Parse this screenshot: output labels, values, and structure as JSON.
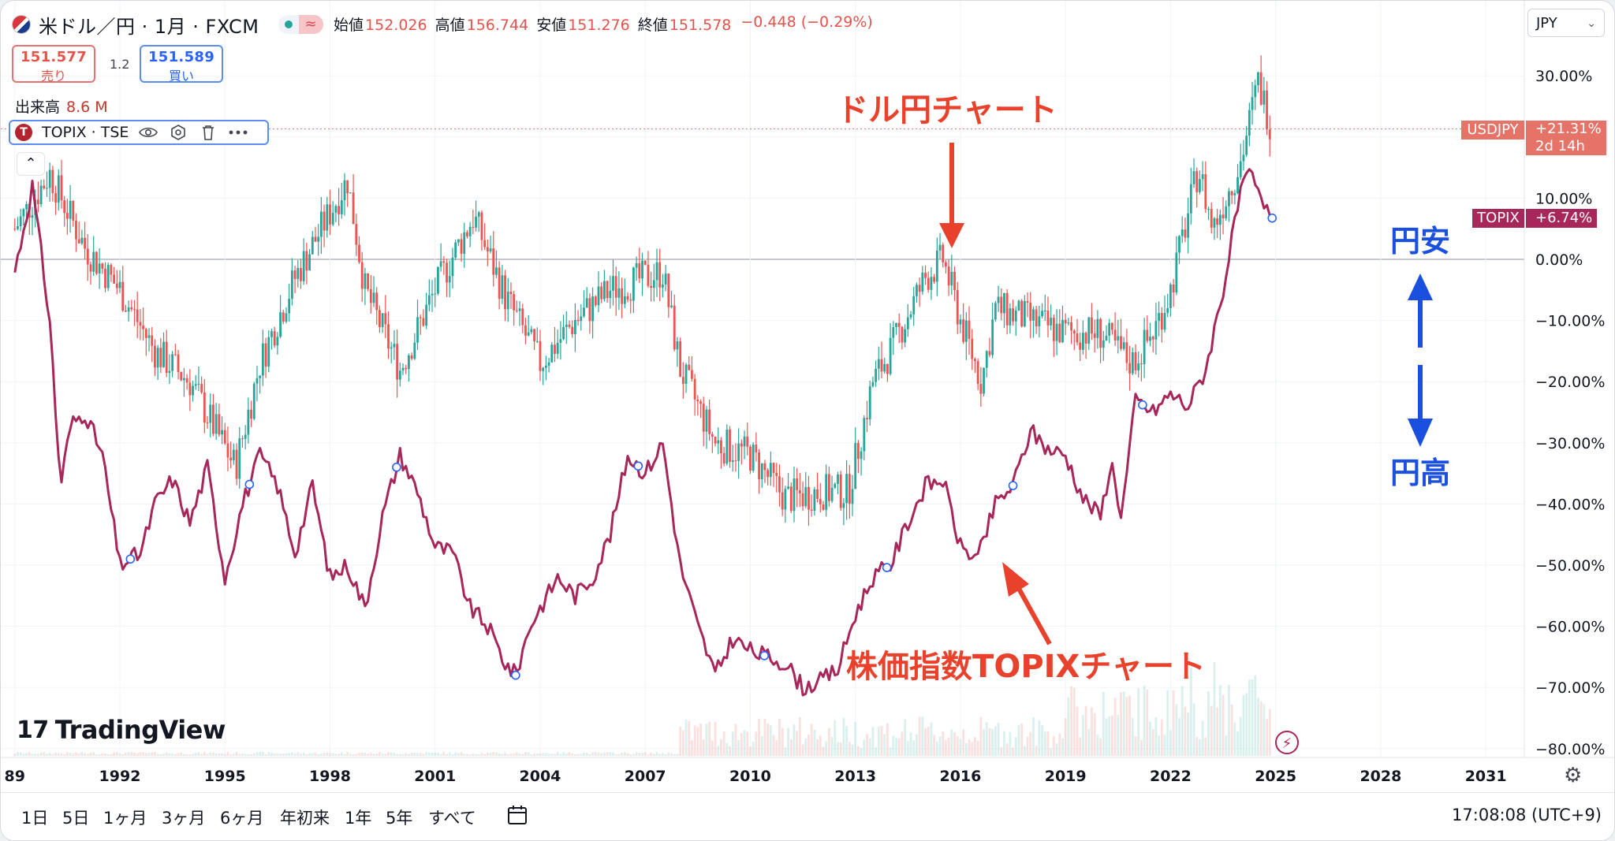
{
  "header": {
    "title": "米ドル／円 · 1月 · FXCM",
    "ohlc": [
      {
        "label": "始値",
        "value": "152.026"
      },
      {
        "label": "高値",
        "value": "156.744"
      },
      {
        "label": "安値",
        "value": "151.276"
      },
      {
        "label": "終値",
        "value": "151.578"
      }
    ],
    "change": "−0.448 (−0.29%)"
  },
  "trade": {
    "sell_price": "151.577",
    "sell_label": "売り",
    "spread": "1.2",
    "buy_price": "151.589",
    "buy_label": "買い"
  },
  "volume": {
    "label": "出来高",
    "value": "8.6 M"
  },
  "compare_symbol": {
    "logo": "T",
    "name": "TOPIX · TSE"
  },
  "currency_select": "JPY",
  "brand": "TradingView",
  "bottom_bar": {
    "timeframes": [
      "1日",
      "5日",
      "1ヶ月",
      "3ヶ月",
      "6ヶ月",
      "年初来",
      "1年",
      "5年",
      "すべて"
    ],
    "clock": "17:08:08 (UTC+9)"
  },
  "price_labels": {
    "usdjpy_tag": "USDJPY",
    "usdjpy_pct": "+21.31%",
    "usdjpy_countdown": "2d 14h",
    "topix_tag": "TOPIX",
    "topix_pct": "+6.74%"
  },
  "annotations": {
    "usdjpy_chart": "ドル円チャート",
    "topix_chart": "株価指数TOPIXチャート",
    "yen_weak": "円安",
    "yen_strong": "円高"
  },
  "colors": {
    "up_candle": "#26a69a",
    "down_candle": "#ef5350",
    "topix_line": "#a8275a",
    "annotation_red": "#e8412c",
    "annotation_blue": "#1a4fe0"
  },
  "chart_data": {
    "type": "line",
    "title": "",
    "x_tick_labels": [
      "89",
      "1992",
      "1995",
      "1998",
      "2001",
      "2004",
      "2007",
      "2010",
      "2013",
      "2016",
      "2019",
      "2022",
      "2025",
      "2028",
      "2031"
    ],
    "x_tick_years": [
      1989,
      1992,
      1995,
      1998,
      2001,
      2004,
      2007,
      2010,
      2013,
      2016,
      2019,
      2022,
      2025,
      2028,
      2031
    ],
    "y_tick_labels": [
      "30.00%",
      "20.00%",
      "10.00%",
      "0.00%",
      "−10.00%",
      "−20.00%",
      "−30.00%",
      "−40.00%",
      "−50.00%",
      "−60.00%",
      "−70.00%",
      "−80.00%"
    ],
    "y_tick_values": [
      30,
      20,
      10,
      0,
      -10,
      -20,
      -30,
      -40,
      -50,
      -60,
      -70,
      -80
    ],
    "ylim": [
      -80,
      30
    ],
    "xlim": [
      1988.6,
      2032.1
    ],
    "grid": true,
    "series": [
      {
        "name": "USDJPY",
        "style": "candles",
        "x": [
          1989.0,
          1990.0,
          1991.0,
          1992.0,
          1993.0,
          1994.0,
          1995.3,
          1996.0,
          1997.0,
          1998.5,
          1999.0,
          2000.0,
          2001.0,
          2002.1,
          2003.0,
          2004.0,
          2005.0,
          2006.0,
          2007.5,
          2008.0,
          2009.0,
          2010.0,
          2011.0,
          2012.0,
          2012.8,
          2013.5,
          2014.0,
          2015.0,
          2015.5,
          2016.0,
          2016.6,
          2017.0,
          2018.0,
          2019.0,
          2020.0,
          2020.9,
          2021.5,
          2022.0,
          2022.8,
          2023.2,
          2024.0,
          2024.5,
          2024.9
        ],
        "values": [
          5,
          14,
          2,
          -5,
          -15,
          -20,
          -34,
          -17,
          -3,
          13,
          -5,
          -18,
          -5,
          7,
          -6,
          -17,
          -10,
          -5,
          -2,
          -18,
          -30,
          -32,
          -39,
          -38,
          -38,
          -20,
          -15,
          -3,
          0,
          -10,
          -20,
          -8,
          -10,
          -12,
          -12,
          -17,
          -12,
          -5,
          15,
          5,
          16,
          29,
          21.31
        ]
      },
      {
        "name": "TOPIX",
        "style": "line",
        "x": [
          1989.0,
          1989.5,
          1990.0,
          1990.3,
          1990.6,
          1991.0,
          1991.5,
          1992.0,
          1992.6,
          1993.0,
          1993.5,
          1994.0,
          1994.5,
          1995.0,
          1995.5,
          1996.0,
          1996.5,
          1997.0,
          1997.5,
          1998.0,
          1998.5,
          1999.0,
          1999.5,
          2000.0,
          2000.5,
          2001.0,
          2001.5,
          2002.0,
          2002.5,
          2003.0,
          2003.3,
          2003.7,
          2004.0,
          2004.5,
          2005.0,
          2005.5,
          2006.0,
          2006.5,
          2007.0,
          2007.5,
          2008.0,
          2008.5,
          2009.0,
          2009.5,
          2010.0,
          2010.5,
          2011.0,
          2011.5,
          2012.0,
          2012.5,
          2013.0,
          2013.5,
          2014.0,
          2014.5,
          2015.0,
          2015.5,
          2016.0,
          2016.5,
          2017.0,
          2017.5,
          2018.0,
          2018.5,
          2019.0,
          2019.5,
          2020.0,
          2020.3,
          2020.6,
          2021.0,
          2021.5,
          2022.0,
          2022.5,
          2023.0,
          2023.5,
          2024.0,
          2024.3,
          2024.6,
          2024.9
        ],
        "values": [
          -2,
          12,
          -10,
          -37,
          -27,
          -25,
          -32,
          -50,
          -48,
          -40,
          -36,
          -43,
          -34,
          -52,
          -40,
          -32,
          -37,
          -48,
          -37,
          -52,
          -50,
          -57,
          -42,
          -32,
          -38,
          -47,
          -48,
          -57,
          -60,
          -66,
          -68,
          -60,
          -57,
          -52,
          -55,
          -52,
          -45,
          -32,
          -35,
          -30,
          -50,
          -60,
          -68,
          -62,
          -64,
          -65,
          -66,
          -70,
          -69,
          -67,
          -58,
          -52,
          -50,
          -43,
          -37,
          -36,
          -47,
          -49,
          -40,
          -37,
          -28,
          -31,
          -32,
          -39,
          -42,
          -33,
          -42,
          -23,
          -25,
          -22,
          -24,
          -18,
          -5,
          11,
          14,
          9,
          6.74
        ]
      }
    ],
    "last_values": {
      "USDJPY": 21.31,
      "TOPIX": 6.74
    }
  }
}
